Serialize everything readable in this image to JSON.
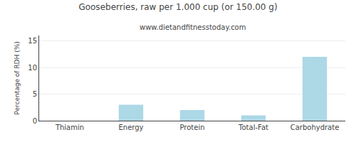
{
  "chart_data": {
    "type": "bar",
    "title": "Gooseberries, raw per 1.000 cup (or 150.00 g)",
    "subtitle": "www.dietandfitnesstoday.com",
    "ylabel": "Percentage of RDH (%)",
    "categories": [
      "Thiamin",
      "Energy",
      "Protein",
      "Total-Fat",
      "Carbohydrate"
    ],
    "values": [
      0.0,
      3.0,
      2.0,
      1.0,
      12.0
    ],
    "color": "#add8e6",
    "ylim": [
      0,
      16
    ],
    "yticks": [
      0,
      5,
      10,
      15
    ],
    "grid": true
  }
}
